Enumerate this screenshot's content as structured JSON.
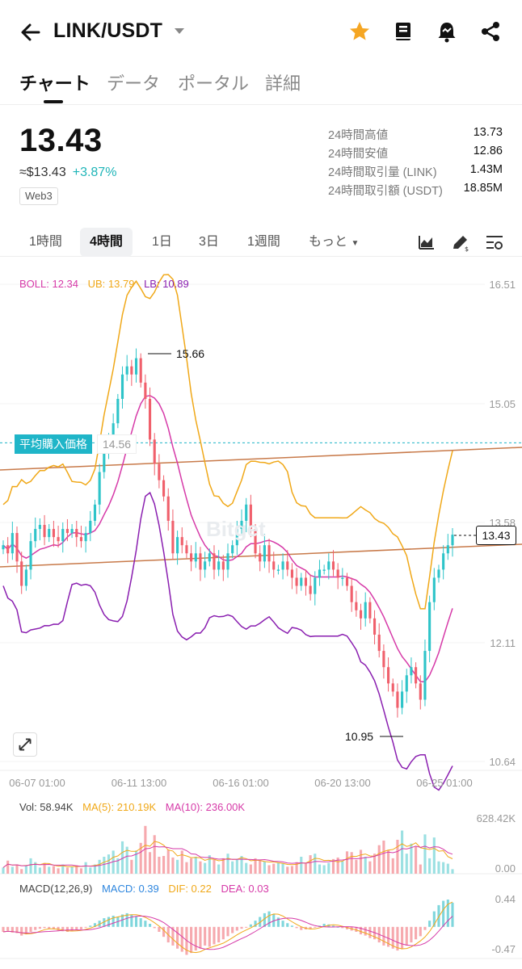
{
  "header": {
    "pair": "LINK/USDT",
    "icons": [
      "arrow-left-icon",
      "caret-down-icon",
      "star-icon",
      "book-icon",
      "alarm-icon",
      "share-icon"
    ],
    "star_color": "#f5a623"
  },
  "tabs": [
    {
      "label": "チャート",
      "active": true
    },
    {
      "label": "データ",
      "active": false
    },
    {
      "label": "ポータル",
      "active": false
    },
    {
      "label": "詳細",
      "active": false
    }
  ],
  "price": {
    "last": "13.43",
    "usd": "≈$13.43",
    "change": "+3.87%",
    "badge": "Web3",
    "change_color": "#1fb5b8"
  },
  "stats": [
    {
      "label": "24時間高値",
      "value": "13.73"
    },
    {
      "label": "24時間安値",
      "value": "12.86"
    },
    {
      "label": "24時間取引量 (LINK)",
      "value": "1.43M"
    },
    {
      "label": "24時間取引額 (USDT)",
      "value": "18.85M"
    }
  ],
  "intervals": [
    {
      "label": "1時間",
      "active": false
    },
    {
      "label": "4時間",
      "active": true
    },
    {
      "label": "1日",
      "active": false
    },
    {
      "label": "3日",
      "active": false
    },
    {
      "label": "1週間",
      "active": false
    },
    {
      "label": "もっと",
      "active": false
    }
  ],
  "toolbar_icons": [
    "area-chart-icon",
    "draw-tool-icon",
    "indicator-settings-icon"
  ],
  "chart": {
    "boll_legend": {
      "boll": "BOLL: 12.34",
      "ub": "UB: 13.79",
      "lb": "LB: 10.89"
    },
    "y_ticks": [
      "16.51",
      "15.05",
      "13.58",
      "12.11",
      "10.64"
    ],
    "x_ticks": [
      "06-07 01:00",
      "06-11 13:00",
      "06-16 01:00",
      "06-20 13:00",
      "06-25 01:00"
    ],
    "high_label": "15.66",
    "low_label": "10.95",
    "current_price": "13.43",
    "avg_label": "平均購入価格",
    "avg_value": "14.56",
    "watermark": "Bitget",
    "colors": {
      "up": "#2ec4c9",
      "down": "#f0606c",
      "boll": "#d63aa8",
      "ub": "#f0a818",
      "lb": "#8a1fb0",
      "trend": "#c87a4a"
    }
  },
  "volume": {
    "legend": {
      "vol": "Vol: 58.94K",
      "ma5": "MA(5): 210.19K",
      "ma10": "MA(10): 236.00K"
    },
    "y_ticks": [
      "628.42K",
      "0.00"
    ]
  },
  "macd": {
    "legend": {
      "title": "MACD(12,26,9)",
      "macd": "MACD: 0.39",
      "dif": "DIF: 0.22",
      "dea": "DEA: 0.03"
    },
    "y_ticks": [
      "0.44",
      "-0.47"
    ]
  },
  "chart_data": {
    "type": "candlestick",
    "interval": "4h",
    "y_axis_ticks": [
      16.51,
      15.05,
      13.58,
      12.11,
      10.64
    ],
    "x_axis_ticks": [
      "06-07 01:00",
      "06-11 13:00",
      "06-16 01:00",
      "06-20 13:00",
      "06-25 01:00"
    ],
    "annotations": {
      "high": 15.66,
      "low": 10.95,
      "avg_buy_price": 14.56,
      "last": 13.43
    },
    "boll": {
      "mid": 12.34,
      "upper": 13.79,
      "lower": 10.89
    },
    "close": [
      13.3,
      13.2,
      13.45,
      13.1,
      12.8,
      13.0,
      13.35,
      13.5,
      13.55,
      13.4,
      13.5,
      13.4,
      13.35,
      13.5,
      13.45,
      13.5,
      13.4,
      13.35,
      13.45,
      13.6,
      13.8,
      14.2,
      14.5,
      14.6,
      14.8,
      15.1,
      15.4,
      15.5,
      15.4,
      15.6,
      15.3,
      15.1,
      14.6,
      14.3,
      14.1,
      13.9,
      13.6,
      13.2,
      13.4,
      13.3,
      13.2,
      13.1,
      13.2,
      13.0,
      13.1,
      13.2,
      13.0,
      13.1,
      13.0,
      13.2,
      13.3,
      13.5,
      13.6,
      13.8,
      13.5,
      13.2,
      13.1,
      13.3,
      13.1,
      13.0,
      13.0,
      13.1,
      13.0,
      12.9,
      12.8,
      12.9,
      12.8,
      12.7,
      12.9,
      13.0,
      13.0,
      13.1,
      13.0,
      12.9,
      12.9,
      12.8,
      12.6,
      12.5,
      12.4,
      12.6,
      12.4,
      12.2,
      12.0,
      11.8,
      11.6,
      11.5,
      11.3,
      11.5,
      11.7,
      11.8,
      11.6,
      11.4,
      12.0,
      12.6,
      12.9,
      13.0,
      13.2,
      13.3,
      13.43
    ],
    "volume_ymax": 628.42,
    "volume_unit": "K",
    "volume": [
      80,
      170,
      90,
      120,
      60,
      100,
      200,
      150,
      80,
      140,
      90,
      100,
      70,
      120,
      80,
      90,
      110,
      70,
      150,
      80,
      120,
      180,
      220,
      250,
      300,
      200,
      420,
      350,
      180,
      300,
      400,
      620,
      280,
      500,
      220,
      230,
      310,
      210,
      180,
      300,
      150,
      200,
      220,
      160,
      140,
      240,
      180,
      120,
      200,
      260,
      160,
      190,
      230,
      140,
      120,
      200,
      170,
      160,
      110,
      130,
      140,
      130,
      90,
      100,
      150,
      220,
      130,
      240,
      260,
      120,
      110,
      140,
      190,
      210,
      160,
      290,
      280,
      180,
      310,
      220,
      160,
      260,
      370,
      430,
      310,
      200,
      440,
      560,
      260,
      390,
      350,
      120,
      510,
      200,
      470,
      160,
      150,
      130,
      58.94
    ],
    "macd_ymax": 0.44,
    "macd_ymin": -0.47,
    "macd_hist": [
      -0.08,
      -0.06,
      -0.09,
      -0.1,
      -0.14,
      -0.12,
      -0.08,
      -0.05,
      -0.03,
      -0.02,
      -0.03,
      -0.04,
      -0.06,
      -0.07,
      -0.08,
      -0.06,
      -0.05,
      -0.04,
      -0.01,
      0.02,
      0.06,
      0.1,
      0.14,
      0.16,
      0.18,
      0.16,
      0.2,
      0.22,
      0.2,
      0.17,
      0.14,
      0.1,
      0.05,
      -0.02,
      -0.08,
      -0.16,
      -0.25,
      -0.3,
      -0.35,
      -0.4,
      -0.45,
      -0.42,
      -0.38,
      -0.35,
      -0.3,
      -0.32,
      -0.28,
      -0.25,
      -0.2,
      -0.15,
      -0.1,
      -0.06,
      -0.03,
      -0.01,
      0.04,
      0.1,
      0.16,
      0.22,
      0.25,
      0.2,
      0.15,
      0.1,
      0.06,
      0.02,
      -0.02,
      -0.05,
      -0.04,
      -0.03,
      -0.01,
      0.02,
      0.05,
      0.04,
      0.02,
      0.0,
      -0.02,
      -0.04,
      -0.06,
      -0.08,
      -0.12,
      -0.14,
      -0.18,
      -0.2,
      -0.25,
      -0.3,
      -0.32,
      -0.35,
      -0.38,
      -0.36,
      -0.3,
      -0.25,
      -0.2,
      -0.15,
      -0.05,
      0.1,
      0.25,
      0.35,
      0.42,
      0.44,
      0.39
    ]
  }
}
